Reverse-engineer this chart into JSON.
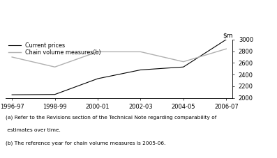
{
  "x_labels": [
    "1996-97",
    "1998-99",
    "2000-01",
    "2002-03",
    "2004-05",
    "2006-07"
  ],
  "x_values": [
    0,
    1,
    2,
    3,
    4,
    5
  ],
  "ylim": [
    2000,
    3000
  ],
  "yticks": [
    2000,
    2200,
    2400,
    2600,
    2800,
    3000
  ],
  "current_prices_x": [
    0,
    1,
    2,
    3,
    4,
    5
  ],
  "current_prices_y": [
    2055,
    2060,
    2330,
    2480,
    2530,
    3000
  ],
  "chain_volume_x": [
    0,
    1,
    2,
    3,
    4,
    5
  ],
  "chain_volume_y": [
    2700,
    2530,
    2790,
    2790,
    2620,
    2840
  ],
  "current_color": "#000000",
  "chain_color": "#b0b0b0",
  "legend_current": "Current prices",
  "legend_chain": "Chain volume measures(b)",
  "footnote1": "(a) Refer to the Revisions section of the Technical Note regarding comparability of",
  "footnote2": " estimates over time.",
  "footnote3": "(b) The reference year for chain volume measures is 2005-06."
}
